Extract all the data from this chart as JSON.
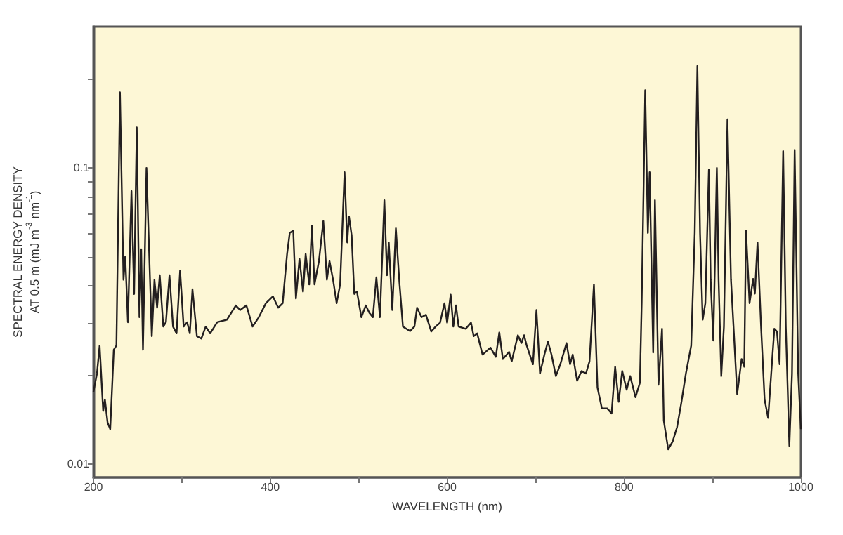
{
  "chart_data": {
    "type": "line",
    "xlabel": "WAVELENGTH (nm)",
    "ylabel": "SPECTRAL ENERGY DENSITY\nAT 0.5 m (mJ m$^{-3}$ nm$^{-1}$)",
    "log": "y",
    "grid": false,
    "xlim": [
      200,
      1000
    ],
    "xticks": [
      200,
      {
        "value": 300,
        "label": null
      },
      400,
      {
        "value": 500,
        "label": null
      },
      600,
      {
        "value": 700,
        "label": null
      },
      800,
      {
        "value": 900,
        "label": null
      },
      1000
    ],
    "ylim": [
      0.009,
      0.3
    ],
    "yticks": [
      0.01,
      {
        "value": 0.02,
        "label": null
      },
      {
        "value": 0.03,
        "label": null
      },
      {
        "value": 0.04,
        "label": null
      },
      {
        "value": 0.05,
        "label": null
      },
      {
        "value": 0.06,
        "label": null
      },
      {
        "value": 0.07,
        "label": null
      },
      {
        "value": 0.08,
        "label": null
      },
      {
        "value": 0.09,
        "label": null
      },
      0.1,
      {
        "value": 0.2,
        "label": null
      }
    ],
    "series": [
      {
        "color": "#231f20",
        "x": [
          200,
          204,
          207,
          211,
          213,
          216,
          219,
          223,
          226,
          230,
          234,
          236,
          239,
          243,
          246,
          249,
          252,
          254,
          256,
          260,
          266,
          269,
          272,
          275,
          279,
          282,
          286,
          290,
          294,
          298,
          302,
          306,
          309,
          312,
          317,
          322,
          327,
          332,
          340,
          351,
          361,
          366,
          373,
          380,
          387,
          395,
          403,
          409,
          414,
          419,
          422,
          426,
          429,
          433,
          437,
          440,
          444,
          447,
          450,
          455,
          460,
          464,
          467,
          471,
          475,
          479,
          484,
          487,
          489,
          492,
          495,
          498,
          503,
          508,
          512,
          516,
          520,
          524,
          529,
          532,
          534,
          538,
          542,
          546,
          550,
          558,
          563,
          566,
          571,
          576,
          582,
          587,
          592,
          597,
          600,
          604,
          607,
          610,
          613,
          621,
          627,
          630,
          634,
          640,
          649,
          655,
          659,
          663,
          670,
          673,
          680,
          684,
          687,
          690,
          697,
          701,
          705,
          710,
          714,
          718,
          723,
          728,
          735,
          739,
          742,
          747,
          752,
          757,
          761,
          766,
          770,
          775,
          781,
          786,
          790,
          794,
          798,
          803,
          807,
          813,
          818,
          820,
          824,
          827,
          829,
          833,
          835,
          839,
          843,
          845,
          850,
          855,
          860,
          865,
          870,
          876,
          880,
          883,
          886,
          889,
          892,
          896,
          898,
          901,
          905,
          907,
          910,
          913,
          917,
          921,
          928,
          933,
          936,
          938,
          942,
          946,
          948,
          951,
          955,
          959,
          963,
          970,
          973,
          976,
          980,
          983,
          987,
          990,
          993,
          997,
          1000
        ],
        "values": [
          0.0175,
          0.0202,
          0.0251,
          0.0151,
          0.0165,
          0.0138,
          0.0131,
          0.0243,
          0.0251,
          0.18,
          0.0419,
          0.0502,
          0.0301,
          0.0836,
          0.0375,
          0.137,
          0.0313,
          0.0531,
          0.0243,
          0.1,
          0.027,
          0.0419,
          0.0337,
          0.0434,
          0.0291,
          0.0301,
          0.0434,
          0.0291,
          0.0276,
          0.045,
          0.0291,
          0.0301,
          0.0276,
          0.0389,
          0.027,
          0.0265,
          0.0291,
          0.0276,
          0.0301,
          0.0307,
          0.0343,
          0.0331,
          0.0343,
          0.0291,
          0.0313,
          0.0349,
          0.0368,
          0.0337,
          0.0349,
          0.0512,
          0.0603,
          0.0614,
          0.0362,
          0.0493,
          0.0382,
          0.0512,
          0.0404,
          0.0637,
          0.0404,
          0.0484,
          0.0661,
          0.0419,
          0.0484,
          0.0419,
          0.0349,
          0.0404,
          0.0968,
          0.056,
          0.0686,
          0.0592,
          0.0375,
          0.0382,
          0.0313,
          0.0343,
          0.0324,
          0.0313,
          0.0427,
          0.0313,
          0.0778,
          0.0434,
          0.056,
          0.0331,
          0.0625,
          0.0411,
          0.0291,
          0.0281,
          0.0291,
          0.0337,
          0.0313,
          0.0319,
          0.028,
          0.0291,
          0.03,
          0.0349,
          0.03,
          0.0373,
          0.0291,
          0.0343,
          0.0291,
          0.0286,
          0.03,
          0.027,
          0.0276,
          0.0234,
          0.0247,
          0.023,
          0.0278,
          0.0226,
          0.0239,
          0.0222,
          0.0272,
          0.0256,
          0.0272,
          0.0251,
          0.0217,
          0.0331,
          0.0202,
          0.0234,
          0.0259,
          0.0234,
          0.0198,
          0.0217,
          0.0256,
          0.0217,
          0.0234,
          0.0191,
          0.0206,
          0.0202,
          0.0222,
          0.0404,
          0.0181,
          0.0154,
          0.0154,
          0.0148,
          0.0213,
          0.0162,
          0.0206,
          0.0178,
          0.0198,
          0.0168,
          0.0188,
          0.0349,
          0.183,
          0.0603,
          0.0968,
          0.0238,
          0.0778,
          0.0185,
          0.0286,
          0.014,
          0.0112,
          0.0119,
          0.0133,
          0.0162,
          0.0202,
          0.0251,
          0.0603,
          0.221,
          0.0603,
          0.0307,
          0.0349,
          0.0986,
          0.0419,
          0.0261,
          0.1,
          0.0419,
          0.0198,
          0.0291,
          0.146,
          0.0419,
          0.0172,
          0.0226,
          0.0213,
          0.0614,
          0.0349,
          0.0422,
          0.0376,
          0.056,
          0.0291,
          0.0165,
          0.0143,
          0.0286,
          0.028,
          0.0217,
          0.114,
          0.0291,
          0.0115,
          0.0202,
          0.115,
          0.0202,
          0.0131
        ]
      }
    ]
  }
}
